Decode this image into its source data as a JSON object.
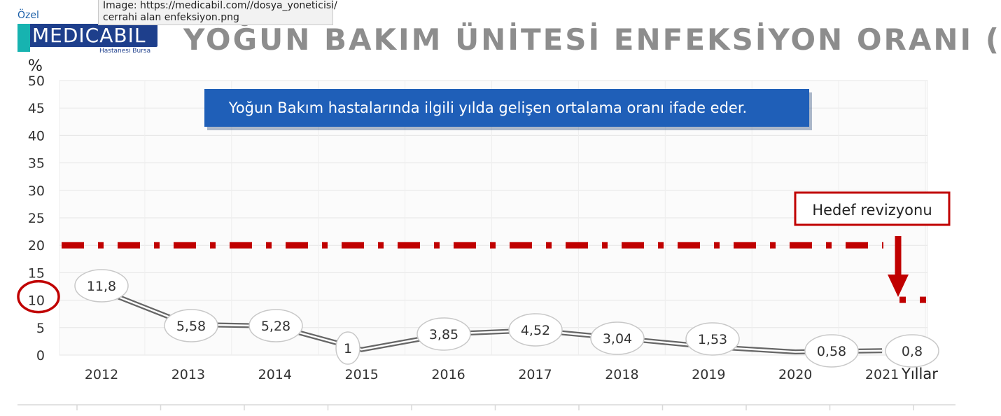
{
  "browser": {
    "tooltip_line1": "Image: https://medicabil.com//dosya_yoneticisi/",
    "tooltip_line2": "cerrahi alan enfeksiyon.png"
  },
  "logo": {
    "prefix": "Özel",
    "name": "MEDICABIL",
    "subtitle": "Hastanesi Bursa",
    "colors": {
      "primary": "#1e3f8c",
      "accent": "#17b3b0"
    }
  },
  "chart_data": {
    "type": "line",
    "title": "YOĞUN BAKIM ÜNİTESİ ENFEKSİYON ORANI (%)",
    "ylabel": "%",
    "xlabel": "Yıllar",
    "ylim": [
      0,
      50
    ],
    "yticks": [
      "0",
      "5",
      "10",
      "15",
      "20",
      "25",
      "30",
      "35",
      "40",
      "45",
      "50"
    ],
    "categories": [
      "2012",
      "2013",
      "2014",
      "2015",
      "2016",
      "2017",
      "2018",
      "2019",
      "2020",
      "2021"
    ],
    "series": [
      {
        "values": [
          11.8,
          5.58,
          5.28,
          1,
          3.85,
          4.52,
          3.04,
          1.53,
          0.58,
          0.8
        ],
        "labels": [
          "11,8",
          "5,58",
          "5,28",
          "1",
          "3,85",
          "4,52",
          "3,04",
          "1,53",
          "0,58",
          "0,8"
        ],
        "color": "#555555"
      }
    ],
    "target": {
      "value": 20,
      "revised_value": 10,
      "color": "#c00000"
    },
    "annotations": {
      "info_box": "Yoğun Bakım hastalarında ilgili yılda gelişen ortalama oranı ifade eder.",
      "revision_label": "Hedef revizyonu",
      "circled_tick": "10"
    },
    "grid": true,
    "legend": "none",
    "colors": {
      "info_box": "#1f5fb8",
      "target": "#c00000",
      "grid": "#e6e6e6"
    }
  }
}
